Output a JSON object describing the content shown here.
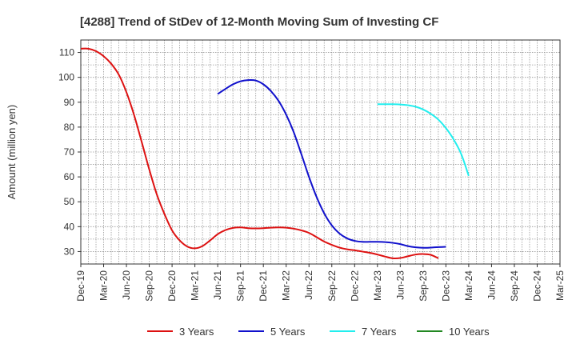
{
  "chart_data": {
    "type": "line",
    "title": "[4288]  Trend of StDev of 12-Month Moving Sum of Investing CF",
    "xlabel": "",
    "ylabel": "Amount (million yen)",
    "ylim": [
      25,
      115
    ],
    "yticks": [
      30,
      40,
      50,
      60,
      70,
      80,
      90,
      100,
      110
    ],
    "x_categories": [
      "Dec-19",
      "Mar-20",
      "Jun-20",
      "Sep-20",
      "Dec-20",
      "Mar-21",
      "Jun-21",
      "Sep-21",
      "Dec-21",
      "Mar-22",
      "Jun-22",
      "Sep-22",
      "Dec-22",
      "Mar-23",
      "Jun-23",
      "Sep-23",
      "Dec-23",
      "Mar-24",
      "Jun-24",
      "Sep-24",
      "Dec-24",
      "Mar-25"
    ],
    "grid": true,
    "legend_position": "bottom",
    "series": [
      {
        "name": "3 Years",
        "color": "#dd1111",
        "points": [
          [
            0,
            111.5
          ],
          [
            0.33,
            111.5
          ],
          [
            0.67,
            110.5
          ],
          [
            1,
            108.5
          ],
          [
            1.33,
            105.5
          ],
          [
            1.67,
            101
          ],
          [
            2,
            94
          ],
          [
            2.33,
            85
          ],
          [
            2.67,
            74
          ],
          [
            3,
            63
          ],
          [
            3.33,
            53
          ],
          [
            3.67,
            45
          ],
          [
            4,
            38.5
          ],
          [
            4.33,
            34.5
          ],
          [
            4.67,
            32
          ],
          [
            5,
            31.3
          ],
          [
            5.33,
            32.2
          ],
          [
            5.67,
            34.5
          ],
          [
            6,
            37
          ],
          [
            6.33,
            38.6
          ],
          [
            6.67,
            39.5
          ],
          [
            7,
            39.7
          ],
          [
            7.33,
            39.4
          ],
          [
            7.67,
            39.3
          ],
          [
            8,
            39.4
          ],
          [
            8.33,
            39.6
          ],
          [
            8.67,
            39.7
          ],
          [
            9,
            39.6
          ],
          [
            9.33,
            39.2
          ],
          [
            9.67,
            38.5
          ],
          [
            10,
            37.5
          ],
          [
            10.33,
            35.8
          ],
          [
            10.67,
            34
          ],
          [
            11,
            32.7
          ],
          [
            11.33,
            31.6
          ],
          [
            11.67,
            30.9
          ],
          [
            12,
            30.5
          ],
          [
            12.33,
            30
          ],
          [
            12.67,
            29.5
          ],
          [
            13,
            28.8
          ],
          [
            13.33,
            28
          ],
          [
            13.67,
            27.3
          ],
          [
            14,
            27.4
          ],
          [
            14.33,
            28.1
          ],
          [
            14.67,
            28.8
          ],
          [
            15,
            29
          ],
          [
            15.33,
            28.7
          ],
          [
            15.67,
            27.3
          ]
        ]
      },
      {
        "name": "5 Years",
        "color": "#1111cc",
        "points": [
          [
            6,
            93.3
          ],
          [
            6.33,
            95.3
          ],
          [
            6.67,
            97.2
          ],
          [
            7,
            98.4
          ],
          [
            7.33,
            98.9
          ],
          [
            7.67,
            98.7
          ],
          [
            8,
            97.2
          ],
          [
            8.33,
            94.5
          ],
          [
            8.67,
            90.5
          ],
          [
            9,
            85
          ],
          [
            9.33,
            78
          ],
          [
            9.67,
            69
          ],
          [
            10,
            60
          ],
          [
            10.33,
            52
          ],
          [
            10.67,
            45.3
          ],
          [
            11,
            40.5
          ],
          [
            11.33,
            37.3
          ],
          [
            11.67,
            35.3
          ],
          [
            12,
            34.3
          ],
          [
            12.33,
            33.9
          ],
          [
            12.67,
            33.9
          ],
          [
            13,
            33.9
          ],
          [
            13.33,
            33.8
          ],
          [
            13.67,
            33.5
          ],
          [
            14,
            33
          ],
          [
            14.33,
            32.2
          ],
          [
            14.67,
            31.7
          ],
          [
            15,
            31.5
          ],
          [
            15.33,
            31.6
          ],
          [
            15.67,
            31.8
          ],
          [
            16,
            31.9
          ]
        ]
      },
      {
        "name": "7 Years",
        "color": "#22eeee",
        "points": [
          [
            13,
            89.2
          ],
          [
            13.33,
            89.2
          ],
          [
            13.67,
            89.2
          ],
          [
            14,
            89.1
          ],
          [
            14.33,
            88.8
          ],
          [
            14.67,
            88.2
          ],
          [
            15,
            87.1
          ],
          [
            15.33,
            85.4
          ],
          [
            15.67,
            83
          ],
          [
            16,
            79.6
          ],
          [
            16.33,
            75.2
          ],
          [
            16.67,
            69.2
          ],
          [
            17,
            60.4
          ]
        ]
      },
      {
        "name": "10 Years",
        "color": "#228822",
        "points": []
      }
    ]
  }
}
